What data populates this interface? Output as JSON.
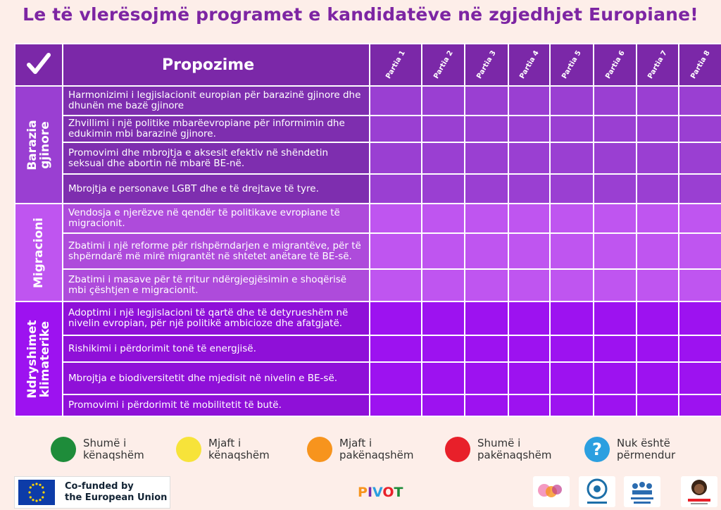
{
  "title": "Le të vlerësojmë programet e kandidatëve në zgjedhjet Europiane!",
  "header": {
    "check_mark": "✓",
    "proposals_label": "Propozime",
    "parties": [
      "Partia 1",
      "Partia 2",
      "Partia 3",
      "Partia 4",
      "Partia 5",
      "Partia 6",
      "Partia 7",
      "Partia 8"
    ]
  },
  "sections": [
    {
      "category": "Barazia\ngjinore",
      "proposals": [
        "Harmonizimi i legjislacionit europian për barazinë gjinore dhe dhunën me bazë gjinore",
        "Zhvillimi i një politike mbarëevropiane për informimin dhe edukimin mbi barazinë gjinore.",
        "Promovimi dhe mbrojtja e aksesit efektiv në shëndetin seksual dhe abortin në mbarë BE-në.",
        "Mbrojtja e personave LGBT dhe e të drejtave të tyre."
      ]
    },
    {
      "category": "Migracioni",
      "proposals": [
        "Vendosja e njerëzve në qendër të politikave evropiane të migracionit.",
        "Zbatimi i një reforme për rishpërndarjen e migrantëve, për të shpërndarë më mirë migrantët në shtetet anëtare të BE-së.",
        "Zbatimi i masave për të rritur ndërgjegjësimin e shoqërisë mbi çështjen e migracionit."
      ]
    },
    {
      "category": "Ndryshimet\nklimaterike",
      "proposals": [
        "Adoptimi i një legjislacioni të qartë dhe të detyrueshëm në nivelin evropian, për një politikë ambicioze dhe afatgjatë.",
        "Rishikimi i përdorimit tonë të energjisë.",
        "Mbrojtja e biodiversitetit dhe mjedisit në nivelin e BE-së.",
        "Promovimi i përdorimit të mobilitetit të butë."
      ]
    }
  ],
  "legend": [
    {
      "label": "Shumë i\nkënaqshëm",
      "color": "#1e8c3a"
    },
    {
      "label": "Mjaft i\nkënaqshëm",
      "color": "#f7e33a"
    },
    {
      "label": "Mjaft i\npakënaqshëm",
      "color": "#f7941d"
    },
    {
      "label": "Shumë i\npakënaqshëm",
      "color": "#e8202a"
    },
    {
      "label": "Nuk është\npërmendur",
      "color": "#2b9fe0",
      "symbol": "?"
    }
  ],
  "footer": {
    "eu_text_line1": "Co-funded by",
    "eu_text_line2": "the European Union",
    "pivot_logo": "PIVOT",
    "partner_logos": [
      "partner-logo-1",
      "cevie-logo",
      "people-focus-logo",
      "save-a-girl-logo"
    ]
  }
}
